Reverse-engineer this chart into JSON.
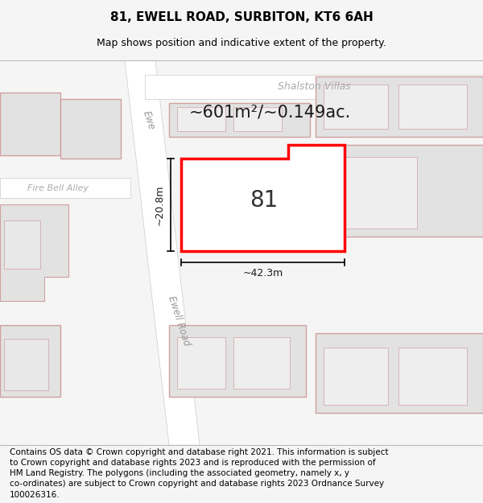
{
  "title": "81, EWELL ROAD, SURBITON, KT6 6AH",
  "subtitle": "Map shows position and indicative extent of the property.",
  "footer_line1": "Contains OS data © Crown copyright and database right 2021. This information is subject",
  "footer_line2": "to Crown copyright and database rights 2023 and is reproduced with the permission of",
  "footer_line3": "HM Land Registry. The polygons (including the associated geometry, namely x, y",
  "footer_line4": "co-ordinates) are subject to Crown copyright and database rights 2023 Ordnance Survey",
  "footer_line5": "100026316.",
  "area_label": "~601m²/~0.149ac.",
  "number_label": "81",
  "width_label": "~42.3m",
  "height_label": "~20.8m",
  "road_label_top": "Ewe",
  "road_label_bottom": "Ewell Road",
  "street_top": "Shalston Villas",
  "street_left": "Fire Bell Alley",
  "bg_color": "#f5f5f5",
  "map_bg": "#eeeeee",
  "building_fill": "#e2e2e2",
  "building_stroke": "#d0a0a0",
  "highlight_fill": "#ffffff",
  "highlight_stroke": "#ff0000",
  "road_fill": "#ffffff",
  "title_fontsize": 11,
  "subtitle_fontsize": 9,
  "footer_fontsize": 7.5
}
